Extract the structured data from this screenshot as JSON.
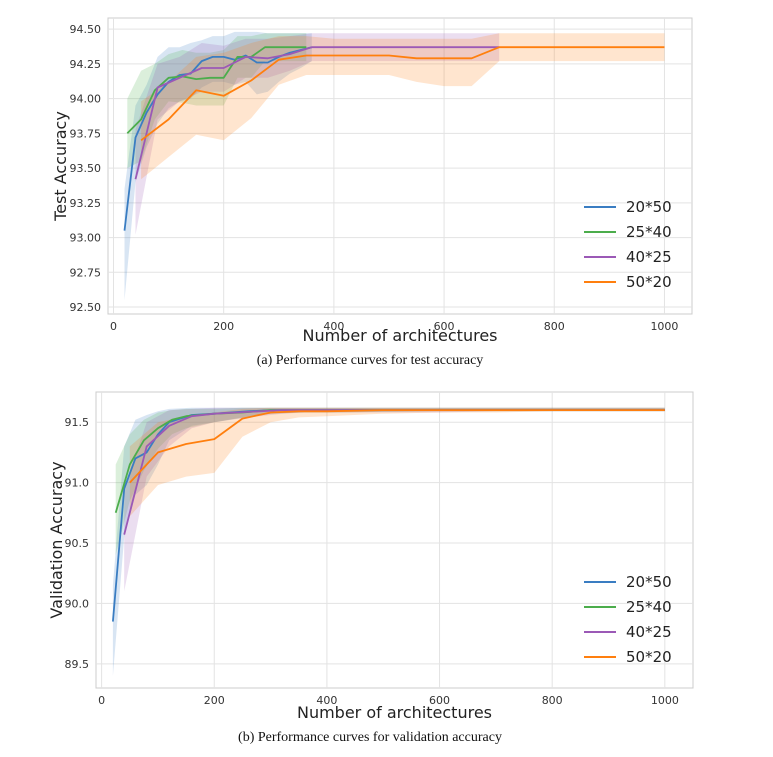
{
  "chart_data": [
    {
      "type": "line",
      "id": "a",
      "title": "",
      "caption": "(a) Performance curves for test accuracy",
      "xlabel": "Number of architectures",
      "ylabel": "Test Accuracy",
      "xlim": [
        -10,
        1050
      ],
      "ylim": [
        92.45,
        94.58
      ],
      "xticks": [
        0,
        200,
        400,
        600,
        800,
        1000
      ],
      "yticks": [
        92.5,
        92.75,
        93.0,
        93.25,
        93.5,
        93.75,
        94.0,
        94.25,
        94.5
      ],
      "ytick_labels": [
        "92.50",
        "92.75",
        "93.00",
        "93.25",
        "93.50",
        "93.75",
        "94.00",
        "94.25",
        "94.50"
      ],
      "grid": true,
      "legend_position": "lower-right",
      "series": [
        {
          "name": "20*50",
          "color": "#3a7dc2",
          "x": [
            20,
            40,
            60,
            80,
            100,
            120,
            140,
            160,
            180,
            200,
            220,
            240,
            260,
            280,
            300,
            320,
            340,
            360
          ],
          "y": [
            93.05,
            93.72,
            93.9,
            94.03,
            94.12,
            94.17,
            94.18,
            94.27,
            94.3,
            94.3,
            94.28,
            94.31,
            94.26,
            94.26,
            94.3,
            94.33,
            94.35,
            94.37
          ],
          "upper": [
            93.35,
            93.95,
            94.1,
            94.3,
            94.37,
            94.37,
            94.4,
            94.42,
            94.45,
            94.45,
            94.48,
            94.48,
            94.48,
            94.47,
            94.47,
            94.47,
            94.47,
            94.47
          ],
          "lower": [
            92.55,
            93.4,
            93.65,
            93.82,
            93.93,
            93.98,
            94.0,
            94.08,
            94.12,
            94.12,
            94.1,
            94.12,
            94.03,
            94.05,
            94.12,
            94.18,
            94.22,
            94.27
          ]
        },
        {
          "name": "25*40",
          "color": "#4cad4c",
          "x": [
            25,
            50,
            75,
            100,
            125,
            150,
            175,
            200,
            225,
            250,
            275,
            300,
            325,
            350
          ],
          "y": [
            93.75,
            93.85,
            94.06,
            94.15,
            94.16,
            94.14,
            94.15,
            94.15,
            94.3,
            94.3,
            94.37,
            94.37,
            94.37,
            94.37
          ],
          "upper": [
            94.0,
            94.2,
            94.25,
            94.32,
            94.35,
            94.33,
            94.33,
            94.35,
            94.45,
            94.45,
            94.47,
            94.47,
            94.47,
            94.47
          ],
          "lower": [
            93.5,
            93.55,
            93.85,
            93.98,
            93.97,
            93.95,
            93.95,
            93.95,
            94.15,
            94.15,
            94.27,
            94.27,
            94.27,
            94.27
          ]
        },
        {
          "name": "40*25",
          "color": "#9b59b6",
          "x": [
            40,
            80,
            120,
            160,
            200,
            240,
            280,
            320,
            360,
            700
          ],
          "y": [
            93.42,
            94.08,
            94.15,
            94.22,
            94.22,
            94.3,
            94.29,
            94.32,
            94.37,
            94.37
          ],
          "upper": [
            93.78,
            94.25,
            94.3,
            94.4,
            94.38,
            94.43,
            94.43,
            94.45,
            94.47,
            94.47
          ],
          "lower": [
            93.02,
            93.85,
            93.98,
            94.05,
            94.05,
            94.15,
            94.15,
            94.2,
            94.27,
            94.27
          ]
        },
        {
          "name": "50*20",
          "color": "#ff7f0e",
          "x": [
            50,
            100,
            150,
            200,
            250,
            300,
            350,
            400,
            450,
            500,
            550,
            600,
            650,
            700,
            750,
            800,
            850,
            900,
            950,
            1000
          ],
          "y": [
            93.7,
            93.85,
            94.06,
            94.02,
            94.13,
            94.28,
            94.31,
            94.31,
            94.31,
            94.31,
            94.29,
            94.29,
            94.29,
            94.37,
            94.37,
            94.37,
            94.37,
            94.37,
            94.37,
            94.37
          ],
          "upper": [
            93.98,
            94.12,
            94.3,
            94.33,
            94.4,
            94.45,
            94.45,
            94.43,
            94.43,
            94.43,
            94.43,
            94.43,
            94.43,
            94.47,
            94.47,
            94.47,
            94.47,
            94.47,
            94.47,
            94.47
          ],
          "lower": [
            93.42,
            93.58,
            93.74,
            93.7,
            93.86,
            94.1,
            94.17,
            94.17,
            94.17,
            94.17,
            94.12,
            94.09,
            94.09,
            94.27,
            94.27,
            94.27,
            94.27,
            94.27,
            94.27,
            94.27
          ]
        }
      ]
    },
    {
      "type": "line",
      "id": "b",
      "title": "",
      "caption": "(b) Performance curves for validation accuracy",
      "xlabel": "Number of architectures",
      "ylabel": "Validation Accuracy",
      "xlim": [
        -10,
        1050
      ],
      "ylim": [
        89.3,
        91.75
      ],
      "xticks": [
        0,
        200,
        400,
        600,
        800,
        1000
      ],
      "yticks": [
        89.5,
        90.0,
        90.5,
        91.0,
        91.5
      ],
      "ytick_labels": [
        "89.5",
        "90.0",
        "90.5",
        "91.0",
        "91.5"
      ],
      "grid": true,
      "legend_position": "lower-right",
      "series": [
        {
          "name": "20*50",
          "color": "#3a7dc2",
          "x": [
            20,
            40,
            60,
            80,
            100,
            120,
            160,
            200,
            260,
            300,
            360,
            400,
            600,
            800,
            1000
          ],
          "y": [
            89.85,
            90.95,
            91.2,
            91.25,
            91.4,
            91.5,
            91.56,
            91.57,
            91.59,
            91.6,
            91.6,
            91.6,
            91.6,
            91.6,
            91.6
          ],
          "upper": [
            90.15,
            91.3,
            91.52,
            91.56,
            91.59,
            91.61,
            91.62,
            91.62,
            91.62,
            91.62,
            91.62,
            91.62,
            91.62,
            91.62,
            91.62
          ],
          "lower": [
            89.4,
            90.55,
            90.9,
            90.98,
            91.15,
            91.35,
            91.47,
            91.5,
            91.54,
            91.57,
            91.58,
            91.58,
            91.59,
            91.59,
            91.59
          ]
        },
        {
          "name": "25*40",
          "color": "#4cad4c",
          "x": [
            25,
            50,
            75,
            100,
            125,
            150,
            200,
            250,
            300,
            350,
            400,
            600,
            800,
            1000
          ],
          "y": [
            90.75,
            91.15,
            91.35,
            91.45,
            91.52,
            91.55,
            91.57,
            91.58,
            91.6,
            91.6,
            91.6,
            91.6,
            91.6,
            91.6
          ],
          "upper": [
            91.15,
            91.4,
            91.52,
            91.58,
            91.6,
            91.61,
            91.61,
            91.62,
            91.62,
            91.62,
            91.62,
            91.62,
            91.62,
            91.62
          ],
          "lower": [
            90.4,
            90.85,
            91.1,
            91.28,
            91.4,
            91.45,
            91.5,
            91.54,
            91.57,
            91.58,
            91.58,
            91.59,
            91.59,
            91.59
          ]
        },
        {
          "name": "40*25",
          "color": "#9b59b6",
          "x": [
            40,
            80,
            120,
            160,
            200,
            240,
            280,
            320,
            360,
            400,
            600,
            700,
            800,
            1000
          ],
          "y": [
            90.57,
            91.3,
            91.47,
            91.55,
            91.57,
            91.58,
            91.59,
            91.6,
            91.6,
            91.6,
            91.6,
            91.6,
            91.6,
            91.6
          ],
          "upper": [
            90.95,
            91.5,
            91.6,
            91.61,
            91.62,
            91.62,
            91.62,
            91.62,
            91.62,
            91.62,
            91.62,
            91.62,
            91.62,
            91.62
          ],
          "lower": [
            90.1,
            91.05,
            91.3,
            91.45,
            91.5,
            91.53,
            91.55,
            91.57,
            91.58,
            91.58,
            91.58,
            91.59,
            91.59,
            91.59
          ]
        },
        {
          "name": "50*20",
          "color": "#ff7f0e",
          "x": [
            50,
            100,
            150,
            200,
            250,
            300,
            350,
            400,
            500,
            600,
            700,
            800,
            900,
            1000
          ],
          "y": [
            91.0,
            91.25,
            91.32,
            91.36,
            91.53,
            91.58,
            91.59,
            91.59,
            91.6,
            91.6,
            91.6,
            91.6,
            91.6,
            91.6
          ],
          "upper": [
            91.3,
            91.5,
            91.55,
            91.58,
            91.61,
            91.62,
            91.62,
            91.62,
            91.62,
            91.62,
            91.62,
            91.62,
            91.62,
            91.62
          ],
          "lower": [
            90.72,
            90.98,
            91.05,
            91.08,
            91.38,
            91.5,
            91.54,
            91.55,
            91.57,
            91.58,
            91.58,
            91.59,
            91.59,
            91.59
          ]
        }
      ]
    }
  ]
}
